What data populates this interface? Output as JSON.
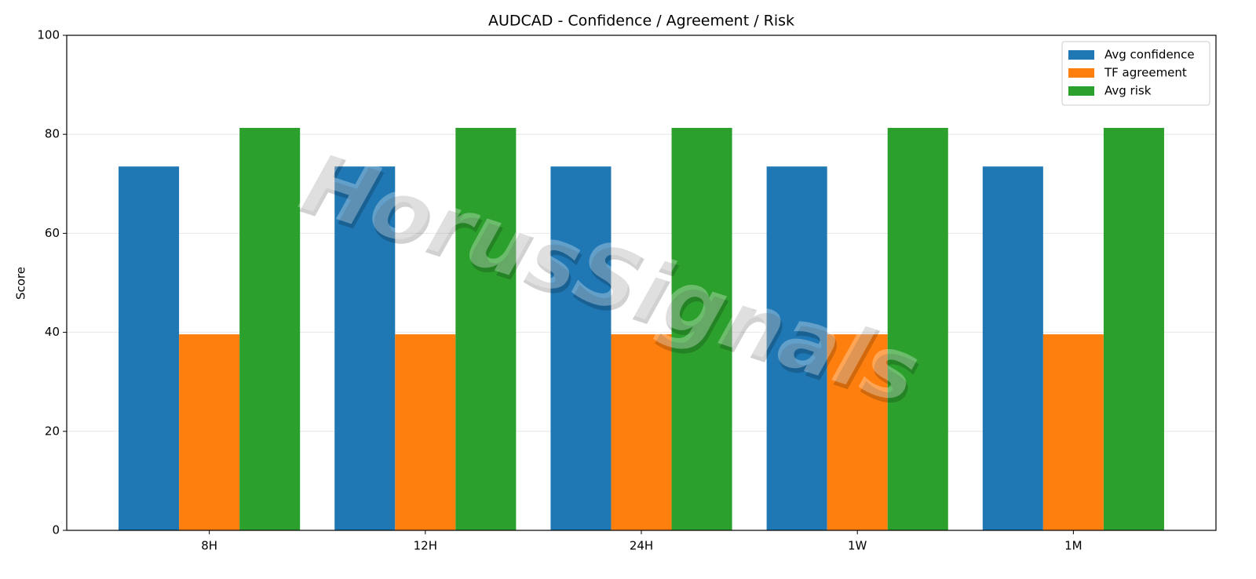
{
  "chart_data": {
    "type": "bar",
    "title": "AUDCAD - Confidence / Agreement / Risk",
    "y_label": "Score",
    "categories": [
      "8H",
      "12H",
      "24H",
      "1W",
      "1M"
    ],
    "series": [
      {
        "name": "Avg confidence",
        "color": "#1f77b4",
        "values": [
          73.5,
          73.5,
          73.5,
          73.5,
          73.5
        ]
      },
      {
        "name": "TF agreement",
        "color": "#ff7f0e",
        "values": [
          39.6,
          39.6,
          39.6,
          39.6,
          39.6
        ]
      },
      {
        "name": "Avg risk",
        "color": "#2ca02c",
        "values": [
          81.3,
          81.3,
          81.3,
          81.3,
          81.3
        ]
      }
    ],
    "ylim": [
      0,
      100
    ],
    "yticks": [
      0,
      20,
      40,
      60,
      80,
      100
    ],
    "grid": true,
    "legend": "upper right",
    "watermark": "HorusSignals"
  }
}
